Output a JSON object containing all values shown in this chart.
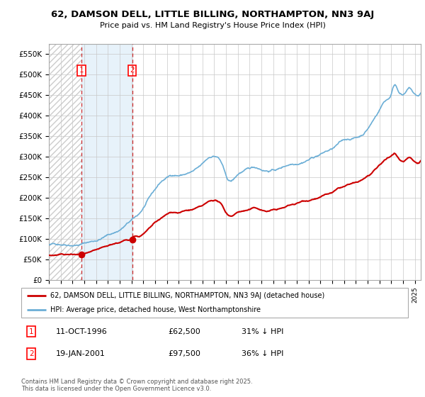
{
  "title_line1": "62, DAMSON DELL, LITTLE BILLING, NORTHAMPTON, NN3 9AJ",
  "title_line2": "Price paid vs. HM Land Registry's House Price Index (HPI)",
  "ylim": [
    0,
    575000
  ],
  "yticks": [
    0,
    50000,
    100000,
    150000,
    200000,
    250000,
    300000,
    350000,
    400000,
    450000,
    500000,
    550000
  ],
  "ytick_labels": [
    "£0",
    "£50K",
    "£100K",
    "£150K",
    "£200K",
    "£250K",
    "£300K",
    "£350K",
    "£400K",
    "£450K",
    "£500K",
    "£550K"
  ],
  "legend_entry1": "62, DAMSON DELL, LITTLE BILLING, NORTHAMPTON, NN3 9AJ (detached house)",
  "legend_entry2": "HPI: Average price, detached house, West Northamptonshire",
  "purchase1_date_x": 1996.78,
  "purchase1_price": 62500,
  "purchase2_date_x": 2001.05,
  "purchase2_price": 97500,
  "hpi_color": "#6baed6",
  "price_color": "#cc0000",
  "grid_color": "#c8c8c8",
  "footnote": "Contains HM Land Registry data © Crown copyright and database right 2025.\nThis data is licensed under the Open Government Licence v3.0.",
  "xmin": 1994.0,
  "xmax": 2025.5
}
